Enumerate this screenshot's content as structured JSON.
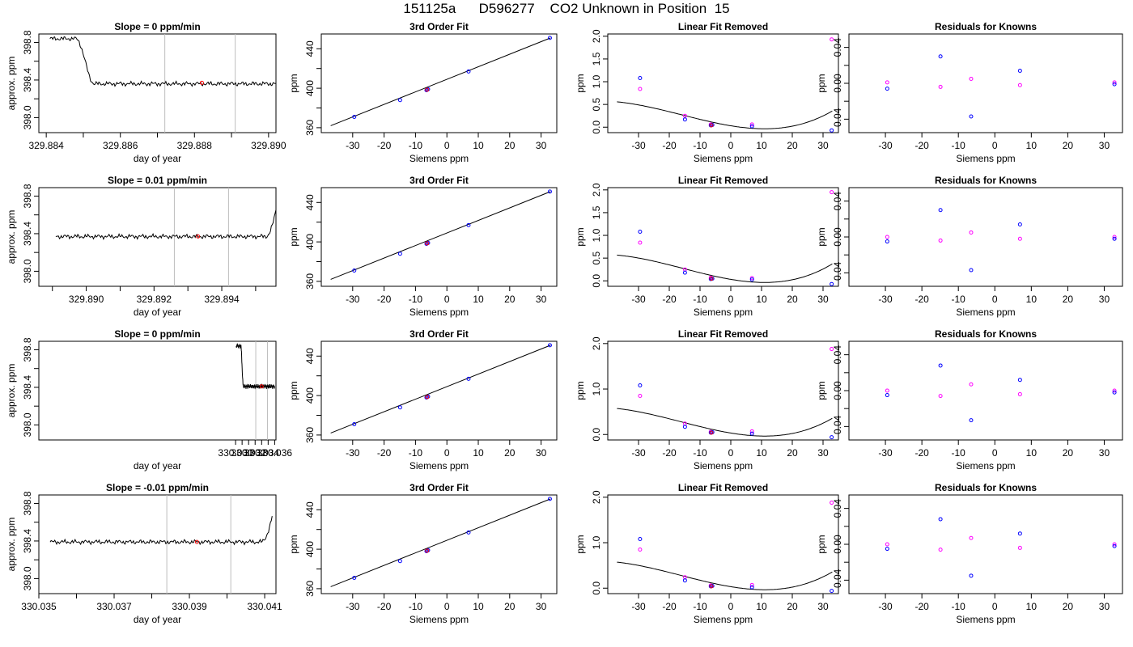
{
  "page_title": "151125a      D596277    CO2 Unknown in Position  15",
  "colors": {
    "trace": "#000000",
    "marker_red": "#ff0000",
    "knowns_blue": "#0000ff",
    "knowns_magenta": "#ff00ff",
    "window_lines": "#bebebe"
  },
  "chart_data": [
    {
      "type": "line",
      "title": "Slope =  0  ppm/min",
      "xlabel": "day of year",
      "ylabel": "approx. ppm",
      "xlim": [
        329.8838,
        329.8902
      ],
      "ylim": [
        397.84,
        398.89
      ],
      "xticks": [
        329.884,
        329.885,
        329.886,
        329.887,
        329.888,
        329.889,
        329.89
      ],
      "xtick_labels": [
        "329.884",
        "",
        "329.886",
        "",
        "329.888",
        "",
        "329.890"
      ],
      "yticks": [
        398.0,
        398.2,
        398.4,
        398.6,
        398.8
      ],
      "ytick_labels": [
        "398.0",
        "",
        "398.4",
        "",
        "398.8"
      ],
      "vlines": [
        329.8872,
        329.8891
      ],
      "shape": "step_down",
      "x_range": [
        329.8841,
        329.8902
      ],
      "high": 398.84,
      "base": 398.36,
      "transition": [
        329.8848,
        329.8853
      ],
      "marker": {
        "x": 329.8882,
        "y": 398.37
      }
    },
    {
      "type": "scatter",
      "title": "3rd Order Fit",
      "xlabel": "Siemens ppm",
      "ylabel": "ppm",
      "xlim": [
        -40,
        35
      ],
      "ylim": [
        355,
        455
      ],
      "xticks": [
        -30,
        -20,
        -10,
        0,
        10,
        20,
        30
      ],
      "yticks": [
        360,
        380,
        400,
        420,
        440
      ],
      "ytick_labels": [
        "360",
        "",
        "400",
        "",
        "440"
      ],
      "fit_line": {
        "from": [
          -37,
          362
        ],
        "to": [
          33,
          451
        ]
      },
      "points_blue": [
        [
          -29.5,
          371
        ],
        [
          -14.9,
          388
        ],
        [
          -6.5,
          398
        ],
        [
          -6.0,
          399
        ],
        [
          6.9,
          417
        ],
        [
          32.8,
          451
        ]
      ],
      "points_red": [
        [
          -6.3,
          398.5
        ]
      ]
    },
    {
      "type": "scatter",
      "title": "Linear Fit Removed",
      "xlabel": "Siemens ppm",
      "ylabel": "ppm",
      "xlim": [
        -40,
        35
      ],
      "ylim": [
        -0.12,
        2.05
      ],
      "xticks": [
        -30,
        -20,
        -10,
        0,
        10,
        20,
        30
      ],
      "yticks": [
        0.0,
        0.5,
        1.0,
        1.5,
        2.0
      ],
      "ytick_labels": [
        "0.0",
        "0.5",
        "1.0",
        "1.5",
        "2.0"
      ],
      "curve": {
        "x_range": [
          -37,
          33
        ],
        "coeffs": [
          0.0312,
          -0.0111,
          0.000375,
          7.86e-06
        ]
      },
      "points_blue": [
        [
          -29.5,
          1.08
        ],
        [
          -14.9,
          0.17
        ],
        [
          -6.5,
          0.04
        ],
        [
          -6.0,
          0.05
        ],
        [
          6.9,
          0.02
        ],
        [
          32.8,
          -0.07
        ]
      ],
      "points_magenta": [
        [
          -29.5,
          0.84
        ],
        [
          -14.9,
          0.25
        ],
        [
          -6.5,
          0.06
        ],
        [
          6.9,
          0.06
        ],
        [
          32.8,
          1.93
        ]
      ],
      "points_red": [
        [
          -6.3,
          0.04
        ]
      ]
    },
    {
      "type": "scatter",
      "title": "Residuals for Knowns",
      "xlabel": "Siemens ppm",
      "ylabel": "ppm",
      "xlim": [
        -40,
        35
      ],
      "ylim": [
        -0.055,
        0.055
      ],
      "xticks": [
        -30,
        -20,
        -10,
        0,
        10,
        20,
        30
      ],
      "yticks": [
        -0.04,
        -0.02,
        0.0,
        0.02,
        0.04
      ],
      "ytick_labels": [
        "-0.04",
        "",
        "0.00",
        "",
        "0.04"
      ],
      "points_blue": [
        [
          -29.5,
          -0.006
        ],
        [
          -14.9,
          0.03
        ],
        [
          -6.5,
          -0.037
        ],
        [
          6.9,
          0.014
        ],
        [
          32.8,
          -0.001
        ]
      ],
      "points_magenta": [
        [
          -29.5,
          0.001
        ],
        [
          -14.9,
          -0.004
        ],
        [
          -6.5,
          0.005
        ],
        [
          6.9,
          -0.002
        ],
        [
          32.8,
          0.001
        ]
      ]
    },
    {
      "type": "line",
      "title": "Slope =  0.01  ppm/min",
      "xlabel": "day of year",
      "ylabel": "approx. ppm",
      "xlim": [
        329.8886,
        329.8956
      ],
      "ylim": [
        397.84,
        398.89
      ],
      "xticks": [
        329.889,
        329.89,
        329.891,
        329.892,
        329.893,
        329.894,
        329.895
      ],
      "xtick_labels": [
        "",
        "329.890",
        "",
        "329.892",
        "",
        "329.894",
        ""
      ],
      "yticks": [
        398.0,
        398.2,
        398.4,
        398.6,
        398.8
      ],
      "ytick_labels": [
        "398.0",
        "",
        "398.4",
        "",
        "398.8"
      ],
      "vlines": [
        329.8926,
        329.8942
      ],
      "shape": "step_up",
      "x_range": [
        329.8891,
        329.8956
      ],
      "high": 398.66,
      "base": 398.37,
      "transition": [
        329.8953,
        329.8956
      ],
      "marker": {
        "x": 329.8933,
        "y": 398.37
      }
    },
    {
      "type": "scatter",
      "title": "3rd Order Fit",
      "xlabel": "Siemens ppm",
      "ylabel": "ppm",
      "xlim": [
        -40,
        35
      ],
      "ylim": [
        355,
        455
      ],
      "xticks": [
        -30,
        -20,
        -10,
        0,
        10,
        20,
        30
      ],
      "yticks": [
        360,
        380,
        400,
        420,
        440
      ],
      "ytick_labels": [
        "360",
        "",
        "400",
        "",
        "440"
      ],
      "fit_line": {
        "from": [
          -37,
          362
        ],
        "to": [
          33,
          451
        ]
      },
      "points_blue": [
        [
          -29.5,
          371
        ],
        [
          -14.9,
          388
        ],
        [
          -6.5,
          398
        ],
        [
          -6.0,
          399
        ],
        [
          6.9,
          417
        ],
        [
          32.8,
          451
        ]
      ],
      "points_red": [
        [
          -6.3,
          398.5
        ]
      ]
    },
    {
      "type": "scatter",
      "title": "Linear Fit Removed",
      "xlabel": "Siemens ppm",
      "ylabel": "ppm",
      "xlim": [
        -40,
        35
      ],
      "ylim": [
        -0.12,
        2.05
      ],
      "xticks": [
        -30,
        -20,
        -10,
        0,
        10,
        20,
        30
      ],
      "yticks": [
        0.0,
        0.5,
        1.0,
        1.5,
        2.0
      ],
      "ytick_labels": [
        "0.0",
        "0.5",
        "1.0",
        "1.5",
        "2.0"
      ],
      "curve": {
        "x_range": [
          -37,
          33
        ],
        "coeffs": [
          0.033,
          -0.0115,
          0.000386,
          8.3e-06
        ]
      },
      "points_blue": [
        [
          -29.5,
          1.08
        ],
        [
          -14.9,
          0.18
        ],
        [
          -6.5,
          0.04
        ],
        [
          -6.0,
          0.05
        ],
        [
          6.9,
          0.03
        ],
        [
          32.8,
          -0.07
        ]
      ],
      "points_magenta": [
        [
          -29.5,
          0.84
        ],
        [
          -14.9,
          0.25
        ],
        [
          -6.5,
          0.07
        ],
        [
          6.9,
          0.06
        ],
        [
          32.8,
          1.95
        ]
      ],
      "points_red": [
        [
          -6.3,
          0.05
        ]
      ]
    },
    {
      "type": "scatter",
      "title": "Residuals for Knowns",
      "xlabel": "Siemens ppm",
      "ylabel": "ppm",
      "xlim": [
        -40,
        35
      ],
      "ylim": [
        -0.055,
        0.055
      ],
      "xticks": [
        -30,
        -20,
        -10,
        0,
        10,
        20,
        30
      ],
      "yticks": [
        -0.04,
        -0.02,
        0.0,
        0.02,
        0.04
      ],
      "ytick_labels": [
        "-0.04",
        "",
        "0.00",
        "",
        "0.04"
      ],
      "points_blue": [
        [
          -29.5,
          -0.005
        ],
        [
          -14.9,
          0.03
        ],
        [
          -6.5,
          -0.037
        ],
        [
          6.9,
          0.014
        ],
        [
          32.8,
          -0.002
        ]
      ],
      "points_magenta": [
        [
          -29.5,
          0.0
        ],
        [
          -14.9,
          -0.004
        ],
        [
          -6.5,
          0.005
        ],
        [
          6.9,
          -0.002
        ],
        [
          32.8,
          0.0
        ]
      ]
    },
    {
      "type": "line",
      "title": "Slope =  0  ppm/min",
      "xlabel": "day of year",
      "ylabel": "approx. ppm",
      "xlim": [
        329.9998,
        330.0362
      ],
      "ylim": [
        397.84,
        398.89
      ],
      "xticks": [
        330.03,
        330.031,
        330.032,
        330.033,
        330.034,
        330.035,
        330.036
      ],
      "xtick_labels": [
        "330.030",
        "",
        "330.032",
        "",
        "330.034",
        "",
        "330.036"
      ],
      "yticks": [
        398.0,
        398.2,
        398.4,
        398.6,
        398.8
      ],
      "ytick_labels": [
        "398.0",
        "",
        "398.4",
        "",
        "398.8"
      ],
      "vlines": [
        330.0331,
        330.0349
      ],
      "shape": "step_down",
      "x_range": [
        330.0301,
        330.036
      ],
      "high": 398.84,
      "base": 398.41,
      "transition": [
        330.0308,
        330.0312
      ],
      "marker": {
        "x": 330.034,
        "y": 398.41
      }
    },
    {
      "type": "scatter",
      "title": "3rd Order Fit",
      "xlabel": "Siemens ppm",
      "ylabel": "ppm",
      "xlim": [
        -40,
        35
      ],
      "ylim": [
        355,
        455
      ],
      "xticks": [
        -30,
        -20,
        -10,
        0,
        10,
        20,
        30
      ],
      "yticks": [
        360,
        380,
        400,
        420,
        440
      ],
      "ytick_labels": [
        "360",
        "",
        "400",
        "",
        "440"
      ],
      "fit_line": {
        "from": [
          -37,
          362
        ],
        "to": [
          33,
          451
        ]
      },
      "points_blue": [
        [
          -29.5,
          371
        ],
        [
          -14.9,
          388
        ],
        [
          -6.5,
          398
        ],
        [
          -6.0,
          399
        ],
        [
          6.9,
          417
        ],
        [
          32.8,
          451
        ]
      ],
      "points_red": [
        [
          -6.3,
          398.5
        ]
      ]
    },
    {
      "type": "scatter",
      "title": "Linear Fit Removed",
      "xlabel": "Siemens ppm",
      "ylabel": "ppm",
      "xlim": [
        -40,
        35
      ],
      "ylim": [
        -0.12,
        2.05
      ],
      "xticks": [
        -30,
        -20,
        -10,
        0,
        10,
        20,
        30
      ],
      "yticks": [
        0.0,
        1.0,
        2.0
      ],
      "ytick_labels": [
        "0.0",
        "1.0",
        "2.0"
      ],
      "curve": {
        "x_range": [
          -37,
          33
        ],
        "coeffs": [
          0.0325,
          -0.0112,
          0.00038,
          7.8e-06
        ]
      },
      "points_blue": [
        [
          -29.5,
          1.08
        ],
        [
          -14.9,
          0.17
        ],
        [
          -6.5,
          0.04
        ],
        [
          -6.0,
          0.05
        ],
        [
          6.9,
          0.02
        ],
        [
          32.8,
          -0.06
        ]
      ],
      "points_magenta": [
        [
          -29.5,
          0.85
        ],
        [
          -14.9,
          0.24
        ],
        [
          -6.5,
          0.06
        ],
        [
          6.9,
          0.07
        ],
        [
          32.8,
          1.88
        ]
      ],
      "points_red": [
        [
          -6.3,
          0.04
        ]
      ]
    },
    {
      "type": "scatter",
      "title": "Residuals for Knowns",
      "xlabel": "Siemens ppm",
      "ylabel": "ppm",
      "xlim": [
        -40,
        35
      ],
      "ylim": [
        -0.055,
        0.055
      ],
      "xticks": [
        -30,
        -20,
        -10,
        0,
        10,
        20,
        30
      ],
      "yticks": [
        -0.04,
        -0.02,
        0.0,
        0.02,
        0.04
      ],
      "ytick_labels": [
        "-0.04",
        "",
        "0.00",
        "",
        "0.04"
      ],
      "points_blue": [
        [
          -29.5,
          -0.005
        ],
        [
          -14.9,
          0.028
        ],
        [
          -6.5,
          -0.033
        ],
        [
          6.9,
          0.012
        ],
        [
          32.8,
          -0.002
        ]
      ],
      "points_magenta": [
        [
          -29.5,
          0.0
        ],
        [
          -14.9,
          -0.006
        ],
        [
          -6.5,
          0.007
        ],
        [
          6.9,
          -0.004
        ],
        [
          32.8,
          0.0
        ]
      ]
    },
    {
      "type": "line",
      "title": "Slope =  -0.01  ppm/min",
      "xlabel": "day of year",
      "ylabel": "approx. ppm",
      "xlim": [
        330.035,
        330.0413
      ],
      "ylim": [
        397.84,
        398.89
      ],
      "xticks": [
        330.035,
        330.036,
        330.037,
        330.038,
        330.039,
        330.04,
        330.041
      ],
      "xtick_labels": [
        "330.035",
        "",
        "330.037",
        "",
        "330.039",
        "",
        "330.041"
      ],
      "yticks": [
        398.0,
        398.2,
        398.4,
        398.6,
        398.8
      ],
      "ytick_labels": [
        "398.0",
        "",
        "398.4",
        "",
        "398.8"
      ],
      "vlines": [
        330.0384,
        330.0401
      ],
      "shape": "step_up",
      "x_range": [
        330.0353,
        330.0412
      ],
      "high": 398.66,
      "base": 398.39,
      "transition": [
        330.0409,
        330.0412
      ],
      "marker": {
        "x": 330.0392,
        "y": 398.39
      }
    },
    {
      "type": "scatter",
      "title": "3rd Order Fit",
      "xlabel": "Siemens ppm",
      "ylabel": "ppm",
      "xlim": [
        -40,
        35
      ],
      "ylim": [
        355,
        455
      ],
      "xticks": [
        -30,
        -20,
        -10,
        0,
        10,
        20,
        30
      ],
      "yticks": [
        360,
        380,
        400,
        420,
        440
      ],
      "ytick_labels": [
        "360",
        "",
        "400",
        "",
        "440"
      ],
      "fit_line": {
        "from": [
          -37,
          362
        ],
        "to": [
          33,
          451
        ]
      },
      "points_blue": [
        [
          -29.5,
          371
        ],
        [
          -14.9,
          388
        ],
        [
          -6.5,
          398
        ],
        [
          -6.0,
          399
        ],
        [
          6.9,
          417
        ],
        [
          32.8,
          451
        ]
      ],
      "points_red": [
        [
          -6.3,
          398.5
        ]
      ]
    },
    {
      "type": "scatter",
      "title": "Linear Fit Removed",
      "xlabel": "Siemens ppm",
      "ylabel": "ppm",
      "xlim": [
        -40,
        35
      ],
      "ylim": [
        -0.12,
        2.05
      ],
      "xticks": [
        -30,
        -20,
        -10,
        0,
        10,
        20,
        30
      ],
      "yticks": [
        0.0,
        1.0,
        2.0
      ],
      "ytick_labels": [
        "0.0",
        "1.0",
        "2.0"
      ],
      "curve": {
        "x_range": [
          -37,
          33
        ],
        "coeffs": [
          0.0325,
          -0.0112,
          0.00038,
          7.8e-06
        ]
      },
      "points_blue": [
        [
          -29.5,
          1.08
        ],
        [
          -14.9,
          0.17
        ],
        [
          -6.5,
          0.04
        ],
        [
          -6.0,
          0.05
        ],
        [
          6.9,
          0.02
        ],
        [
          32.8,
          -0.06
        ]
      ],
      "points_magenta": [
        [
          -29.5,
          0.85
        ],
        [
          -14.9,
          0.24
        ],
        [
          -6.5,
          0.06
        ],
        [
          6.9,
          0.07
        ],
        [
          32.8,
          1.88
        ]
      ],
      "points_red": [
        [
          -6.3,
          0.04
        ]
      ]
    },
    {
      "type": "scatter",
      "title": "Residuals for Knowns",
      "xlabel": "Siemens ppm",
      "ylabel": "ppm",
      "xlim": [
        -40,
        35
      ],
      "ylim": [
        -0.055,
        0.055
      ],
      "xticks": [
        -30,
        -20,
        -10,
        0,
        10,
        20,
        30
      ],
      "yticks": [
        -0.04,
        -0.02,
        0.0,
        0.02,
        0.04
      ],
      "ytick_labels": [
        "-0.04",
        "",
        "0.00",
        "",
        "0.04"
      ],
      "points_blue": [
        [
          -29.5,
          -0.005
        ],
        [
          -14.9,
          0.028
        ],
        [
          -6.5,
          -0.035
        ],
        [
          6.9,
          0.012
        ],
        [
          32.8,
          -0.002
        ]
      ],
      "points_magenta": [
        [
          -29.5,
          0.0
        ],
        [
          -14.9,
          -0.006
        ],
        [
          -6.5,
          0.007
        ],
        [
          6.9,
          -0.004
        ],
        [
          32.8,
          0.0
        ]
      ]
    }
  ]
}
